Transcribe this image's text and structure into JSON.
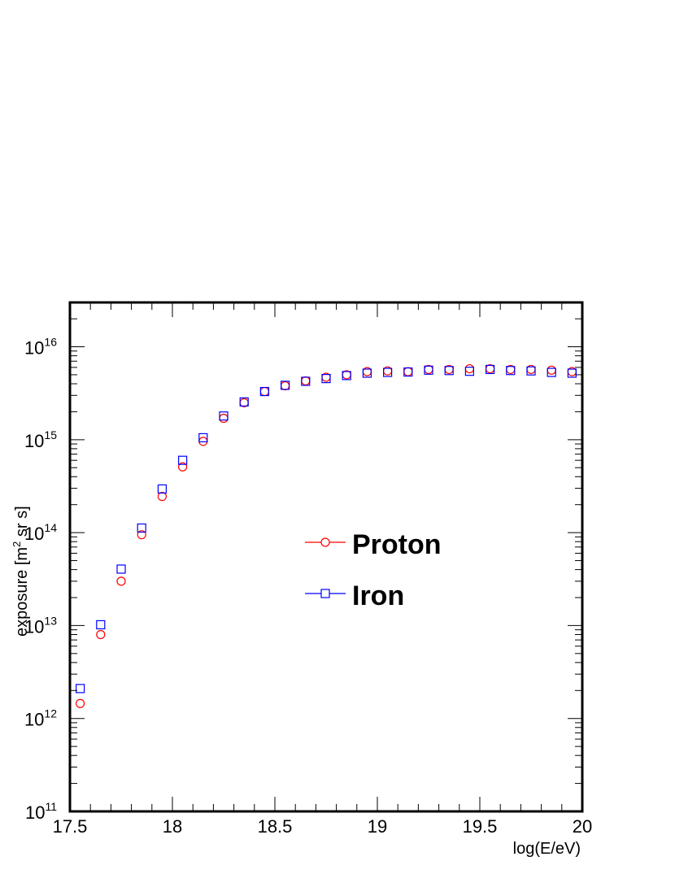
{
  "chart_data": {
    "type": "scatter",
    "xlabel": "log(E/eV)",
    "ylabel_prefix": "exposure [m",
    "ylabel_sup": "2",
    "ylabel_suffix": " sr s]",
    "xlim": [
      17.5,
      20.0
    ],
    "ylim": [
      100000000000.0,
      3e+16
    ],
    "y_scale": "log",
    "x_ticks": [
      "17.5",
      "18",
      "18.5",
      "19",
      "19.5",
      "20"
    ],
    "y_ticks": [
      {
        "base": "10",
        "exp": "11"
      },
      {
        "base": "10",
        "exp": "12"
      },
      {
        "base": "10",
        "exp": "13"
      },
      {
        "base": "10",
        "exp": "14"
      },
      {
        "base": "10",
        "exp": "15"
      },
      {
        "base": "10",
        "exp": "16"
      }
    ],
    "legend_placement": "center-right",
    "x": [
      17.55,
      17.65,
      17.75,
      17.85,
      17.95,
      18.05,
      18.15,
      18.25,
      18.35,
      18.45,
      18.55,
      18.65,
      18.75,
      18.85,
      18.95,
      19.05,
      19.15,
      19.25,
      19.35,
      19.45,
      19.55,
      19.65,
      19.75,
      19.85,
      19.95
    ],
    "series": [
      {
        "name": "Proton",
        "marker": "circle",
        "color": "#ff0000",
        "values": [
          1450000000000.0,
          8000000000000.0,
          30000000000000.0,
          95000000000000.0,
          245000000000000.0,
          510000000000000.0,
          960000000000000.0,
          1700000000000000.0,
          2500000000000000.0,
          3300000000000000.0,
          3800000000000000.0,
          4300000000000000.0,
          4700000000000000.0,
          5000000000000000.0,
          5400000000000000.0,
          5500000000000000.0,
          5400000000000000.0,
          5700000000000000.0,
          5700000000000000.0,
          5800000000000000.0,
          5800000000000000.0,
          5700000000000000.0,
          5700000000000000.0,
          5600000000000000.0,
          5400000000000000.0
        ]
      },
      {
        "name": "Iron",
        "marker": "square",
        "color": "#0000ff",
        "values": [
          2100000000000.0,
          10200000000000.0,
          40500000000000.0,
          112000000000000.0,
          295000000000000.0,
          600000000000000.0,
          1050000000000000.0,
          1800000000000000.0,
          2550000000000000.0,
          3300000000000000.0,
          3850000000000000.0,
          4250000000000000.0,
          4550000000000000.0,
          4900000000000000.0,
          5200000000000000.0,
          5300000000000000.0,
          5350000000000000.0,
          5600000000000000.0,
          5550000000000000.0,
          5450000000000000.0,
          5700000000000000.0,
          5550000000000000.0,
          5500000000000000.0,
          5300000000000000.0,
          5200000000000000.0
        ]
      }
    ]
  }
}
